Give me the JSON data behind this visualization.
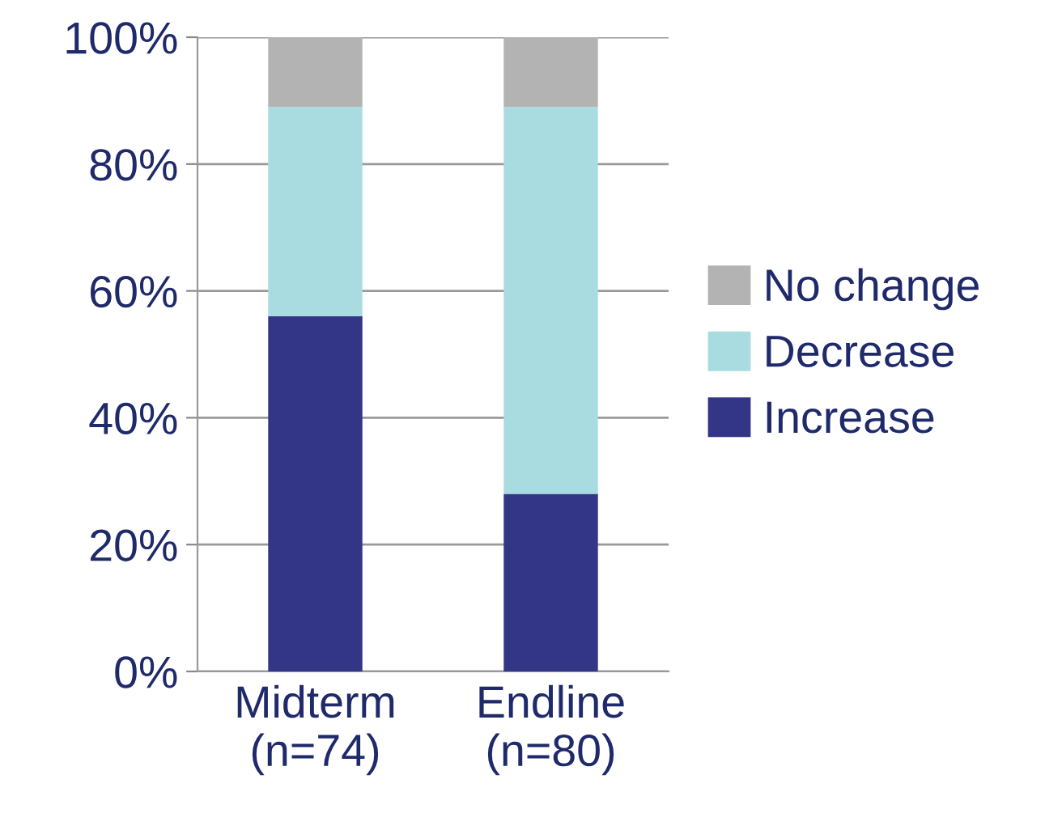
{
  "chart_data": {
    "type": "bar",
    "stacked": true,
    "categories": [
      "Midterm\n(n=74)",
      "Endline\n(n=80)"
    ],
    "series": [
      {
        "name": "Increase",
        "color": "#333687",
        "values": [
          56,
          28
        ]
      },
      {
        "name": "Decrease",
        "color": "#a8dce0",
        "values": [
          33,
          61
        ]
      },
      {
        "name": "No change",
        "color": "#b3b3b3",
        "values": [
          11,
          11
        ]
      }
    ],
    "ylim": [
      0,
      100
    ],
    "yticks": [
      {
        "value": 0,
        "label": "0%"
      },
      {
        "value": 20,
        "label": "20%"
      },
      {
        "value": 40,
        "label": "40%"
      },
      {
        "value": 60,
        "label": "60%"
      },
      {
        "value": 80,
        "label": "80%"
      },
      {
        "value": 100,
        "label": "100%"
      }
    ],
    "grid": "y",
    "legend": "right"
  }
}
